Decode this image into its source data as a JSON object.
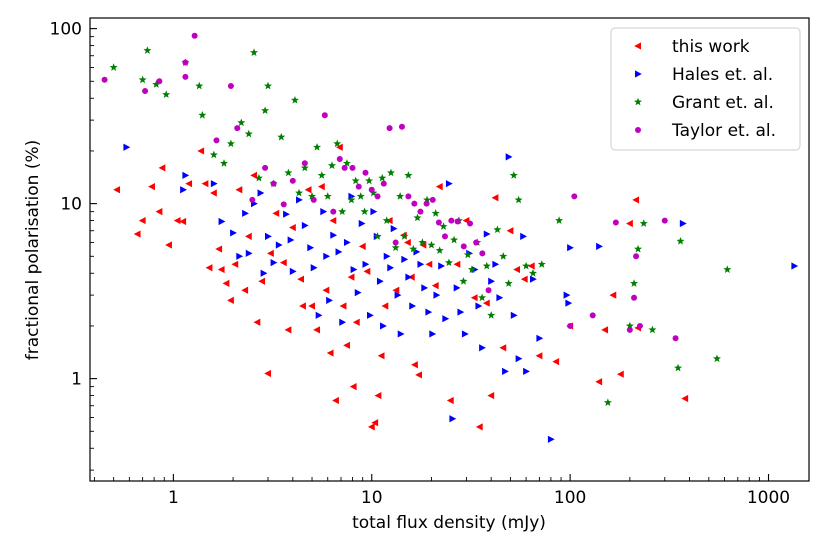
{
  "chart_data": {
    "type": "scatter",
    "xlabel": "total flux density (mJy)",
    "ylabel": "fractional polarisation (%)",
    "xscale": "log",
    "yscale": "log",
    "xlim": [
      0.38,
      1600
    ],
    "ylim": [
      0.26,
      115
    ],
    "xticks": [
      {
        "value": 1,
        "label": "1"
      },
      {
        "value": 10,
        "label": "10"
      },
      {
        "value": 100,
        "label": "100"
      },
      {
        "value": 1000,
        "label": "1000"
      }
    ],
    "yticks": [
      {
        "value": 1,
        "label": "1"
      },
      {
        "value": 10,
        "label": "10"
      },
      {
        "value": 100,
        "label": "100"
      }
    ],
    "grid": false,
    "legend_position": "top-right",
    "colors": {
      "this_work": "#ff0000",
      "hales": "#0000ff",
      "grant": "#008000",
      "taylor": "#bf00bf"
    },
    "series": [
      {
        "name": "this work",
        "marker": "triangle-left",
        "color": "#ff0000",
        "points": [
          [
            0.52,
            12.0
          ],
          [
            0.66,
            6.7
          ],
          [
            0.7,
            8.0
          ],
          [
            0.78,
            12.5
          ],
          [
            0.85,
            9.0
          ],
          [
            0.88,
            16.0
          ],
          [
            0.95,
            5.8
          ],
          [
            1.05,
            8.0
          ],
          [
            1.12,
            7.9
          ],
          [
            1.2,
            13.0
          ],
          [
            1.38,
            20.0
          ],
          [
            1.45,
            13.0
          ],
          [
            1.52,
            4.3
          ],
          [
            1.6,
            11.5
          ],
          [
            1.7,
            5.5
          ],
          [
            1.75,
            4.2
          ],
          [
            1.85,
            3.5
          ],
          [
            1.95,
            2.8
          ],
          [
            2.05,
            4.5
          ],
          [
            2.15,
            12.0
          ],
          [
            2.3,
            3.2
          ],
          [
            2.4,
            6.5
          ],
          [
            2.55,
            14.5
          ],
          [
            2.65,
            2.1
          ],
          [
            2.8,
            3.6
          ],
          [
            3.0,
            1.07
          ],
          [
            3.1,
            5.2
          ],
          [
            3.3,
            8.8
          ],
          [
            3.6,
            4.6
          ],
          [
            3.8,
            1.9
          ],
          [
            4.0,
            7.3
          ],
          [
            4.4,
            3.7
          ],
          [
            4.5,
            2.6
          ],
          [
            4.8,
            12.0
          ],
          [
            5.0,
            2.6
          ],
          [
            5.3,
            1.9
          ],
          [
            5.6,
            12.5
          ],
          [
            5.9,
            3.2
          ],
          [
            6.2,
            1.4
          ],
          [
            6.4,
            8.0
          ],
          [
            6.6,
            0.75
          ],
          [
            6.9,
            21.0
          ],
          [
            7.2,
            2.6
          ],
          [
            7.5,
            1.55
          ],
          [
            7.9,
            3.8
          ],
          [
            8.1,
            0.9
          ],
          [
            8.4,
            2.1
          ],
          [
            9.0,
            5.7
          ],
          [
            9.5,
            4.1
          ],
          [
            10.0,
            0.53
          ],
          [
            10.4,
            0.56
          ],
          [
            10.8,
            0.8
          ],
          [
            11.2,
            1.35
          ],
          [
            11.7,
            2.6
          ],
          [
            12.3,
            8.0
          ],
          [
            13.3,
            3.2
          ],
          [
            14.5,
            6.6
          ],
          [
            15.2,
            6.0
          ],
          [
            15.9,
            3.8
          ],
          [
            16.5,
            1.2
          ],
          [
            17.3,
            1.05
          ],
          [
            18.2,
            5.8
          ],
          [
            19.5,
            4.5
          ],
          [
            21.0,
            3.4
          ],
          [
            22.0,
            12.5
          ],
          [
            25.0,
            0.75
          ],
          [
            27.0,
            4.5
          ],
          [
            30.0,
            8.0
          ],
          [
            33.0,
            2.9
          ],
          [
            35.0,
            0.53
          ],
          [
            38.0,
            2.7
          ],
          [
            40.0,
            0.8
          ],
          [
            42.0,
            10.8
          ],
          [
            46.0,
            1.5
          ],
          [
            50.0,
            7.0
          ],
          [
            54.0,
            4.2
          ],
          [
            59.0,
            3.7
          ],
          [
            64.0,
            4.4
          ],
          [
            70.0,
            1.35
          ],
          [
            85.0,
            1.25
          ],
          [
            100.0,
            2.0
          ],
          [
            140.0,
            0.96
          ],
          [
            150.0,
            1.9
          ],
          [
            165.0,
            3.0
          ],
          [
            180.0,
            1.06
          ],
          [
            200.0,
            7.7
          ],
          [
            215.0,
            10.5
          ],
          [
            220.0,
            1.95
          ],
          [
            380.0,
            0.77
          ]
        ]
      },
      {
        "name": "Hales et. al.",
        "marker": "triangle-right",
        "color": "#0000ff",
        "points": [
          [
            0.58,
            21.0
          ],
          [
            1.12,
            12.0
          ],
          [
            1.15,
            14.5
          ],
          [
            1.6,
            13.0
          ],
          [
            1.75,
            7.9
          ],
          [
            2.0,
            6.8
          ],
          [
            2.15,
            5.0
          ],
          [
            2.3,
            8.8
          ],
          [
            2.4,
            5.2
          ],
          [
            2.55,
            10.0
          ],
          [
            2.75,
            11.5
          ],
          [
            2.85,
            4.0
          ],
          [
            3.0,
            6.5
          ],
          [
            3.2,
            4.6
          ],
          [
            3.4,
            5.8
          ],
          [
            3.7,
            8.7
          ],
          [
            3.9,
            6.2
          ],
          [
            4.0,
            4.1
          ],
          [
            4.3,
            10.5
          ],
          [
            4.6,
            7.5
          ],
          [
            4.9,
            5.6
          ],
          [
            5.1,
            4.3
          ],
          [
            5.4,
            2.3
          ],
          [
            5.7,
            9.0
          ],
          [
            5.9,
            5.0
          ],
          [
            6.1,
            2.8
          ],
          [
            6.4,
            6.6
          ],
          [
            6.8,
            5.3
          ],
          [
            7.1,
            2.1
          ],
          [
            7.5,
            6.0
          ],
          [
            7.9,
            11.0
          ],
          [
            8.1,
            4.2
          ],
          [
            8.5,
            3.1
          ],
          [
            8.9,
            7.7
          ],
          [
            9.3,
            4.5
          ],
          [
            9.8,
            2.3
          ],
          [
            10.2,
            9.0
          ],
          [
            10.6,
            6.5
          ],
          [
            11.0,
            3.6
          ],
          [
            11.4,
            2.0
          ],
          [
            11.9,
            5.0
          ],
          [
            12.4,
            4.3
          ],
          [
            12.9,
            7.2
          ],
          [
            13.5,
            3.0
          ],
          [
            14.0,
            1.8
          ],
          [
            14.6,
            4.8
          ],
          [
            15.3,
            3.8
          ],
          [
            16.0,
            2.6
          ],
          [
            16.8,
            5.3
          ],
          [
            17.6,
            4.5
          ],
          [
            18.4,
            3.3
          ],
          [
            19.3,
            2.4
          ],
          [
            20.2,
            1.8
          ],
          [
            21.2,
            3.0
          ],
          [
            22.4,
            4.4
          ],
          [
            23.5,
            2.2
          ],
          [
            24.5,
            13.0
          ],
          [
            25.5,
            0.59
          ],
          [
            26.8,
            3.3
          ],
          [
            28.0,
            2.4
          ],
          [
            29.5,
            1.8
          ],
          [
            31.0,
            5.2
          ],
          [
            33.0,
            4.2
          ],
          [
            34.5,
            2.6
          ],
          [
            36.0,
            1.5
          ],
          [
            38.0,
            6.7
          ],
          [
            40.0,
            3.6
          ],
          [
            42.0,
            4.5
          ],
          [
            44.0,
            2.9
          ],
          [
            47.0,
            1.1
          ],
          [
            49.0,
            18.5
          ],
          [
            52.0,
            2.3
          ],
          [
            55.0,
            1.3
          ],
          [
            58.0,
            6.5
          ],
          [
            60.0,
            1.1
          ],
          [
            65.0,
            3.7
          ],
          [
            70.0,
            1.7
          ],
          [
            80.0,
            0.45
          ],
          [
            96.0,
            3.0
          ],
          [
            98.0,
            2.7
          ],
          [
            100.0,
            5.6
          ],
          [
            140.0,
            5.7
          ],
          [
            370.0,
            7.7
          ],
          [
            1350.0,
            4.4
          ]
        ]
      },
      {
        "name": "Grant et. al.",
        "marker": "star",
        "color": "#008000",
        "points": [
          [
            0.5,
            60.0
          ],
          [
            0.7,
            51.0
          ],
          [
            0.74,
            75.0
          ],
          [
            0.82,
            48.0
          ],
          [
            0.92,
            42.0
          ],
          [
            1.15,
            64.0
          ],
          [
            1.35,
            47.0
          ],
          [
            1.4,
            32.0
          ],
          [
            1.6,
            19.0
          ],
          [
            1.8,
            17.0
          ],
          [
            1.95,
            22.0
          ],
          [
            2.2,
            29.0
          ],
          [
            2.4,
            25.0
          ],
          [
            2.55,
            73.0
          ],
          [
            2.7,
            14.0
          ],
          [
            2.9,
            34.0
          ],
          [
            3.0,
            47.0
          ],
          [
            3.2,
            13.0
          ],
          [
            3.5,
            24.0
          ],
          [
            3.8,
            15.0
          ],
          [
            4.1,
            39.0
          ],
          [
            4.3,
            11.5
          ],
          [
            4.6,
            16.0
          ],
          [
            5.0,
            11.0
          ],
          [
            5.3,
            21.0
          ],
          [
            5.6,
            14.5
          ],
          [
            6.0,
            11.0
          ],
          [
            6.3,
            16.5
          ],
          [
            6.7,
            22.0
          ],
          [
            7.1,
            9.0
          ],
          [
            7.5,
            17.0
          ],
          [
            7.9,
            10.5
          ],
          [
            8.3,
            13.5
          ],
          [
            8.8,
            11.0
          ],
          [
            9.2,
            9.0
          ],
          [
            9.7,
            13.5
          ],
          [
            10.2,
            11.5
          ],
          [
            10.7,
            6.5
          ],
          [
            11.3,
            14.0
          ],
          [
            11.9,
            8.0
          ],
          [
            12.5,
            15.0
          ],
          [
            13.2,
            5.6
          ],
          [
            13.9,
            11.0
          ],
          [
            14.6,
            6.5
          ],
          [
            15.3,
            14.5
          ],
          [
            16.2,
            5.5
          ],
          [
            17.0,
            8.3
          ],
          [
            18.0,
            6.0
          ],
          [
            19.0,
            10.5
          ],
          [
            20.0,
            5.8
          ],
          [
            21.0,
            8.8
          ],
          [
            22.0,
            5.4
          ],
          [
            23.0,
            7.4
          ],
          [
            24.5,
            4.6
          ],
          [
            26.0,
            6.2
          ],
          [
            27.5,
            8.0
          ],
          [
            29.0,
            3.6
          ],
          [
            30.5,
            5.1
          ],
          [
            32.0,
            4.2
          ],
          [
            34.0,
            6.0
          ],
          [
            36.0,
            2.9
          ],
          [
            38.0,
            4.4
          ],
          [
            40.0,
            2.3
          ],
          [
            43.0,
            7.1
          ],
          [
            46.0,
            5.0
          ],
          [
            49.0,
            3.5
          ],
          [
            52.0,
            14.5
          ],
          [
            55.0,
            10.5
          ],
          [
            60.0,
            4.4
          ],
          [
            65.0,
            4.0
          ],
          [
            72.0,
            4.5
          ],
          [
            88.0,
            8.0
          ],
          [
            155.0,
            0.73
          ],
          [
            200.0,
            2.0
          ],
          [
            210.0,
            3.5
          ],
          [
            220.0,
            5.5
          ],
          [
            235.0,
            7.7
          ],
          [
            260.0,
            1.9
          ],
          [
            350.0,
            1.15
          ],
          [
            360.0,
            6.1
          ],
          [
            550.0,
            1.3
          ],
          [
            620.0,
            4.2
          ]
        ]
      },
      {
        "name": "Taylor et. al.",
        "marker": "circle",
        "color": "#bf00bf",
        "points": [
          [
            0.45,
            51.0
          ],
          [
            0.72,
            44.0
          ],
          [
            0.85,
            50.0
          ],
          [
            1.15,
            53.0
          ],
          [
            1.15,
            64.0
          ],
          [
            1.28,
            91.0
          ],
          [
            1.65,
            23.0
          ],
          [
            1.95,
            47.0
          ],
          [
            2.1,
            27.0
          ],
          [
            2.5,
            10.5
          ],
          [
            2.9,
            16.0
          ],
          [
            3.2,
            13.0
          ],
          [
            3.6,
            9.9
          ],
          [
            4.0,
            13.5
          ],
          [
            4.6,
            17.0
          ],
          [
            5.1,
            10.5
          ],
          [
            5.8,
            32.0
          ],
          [
            6.4,
            9.0
          ],
          [
            6.9,
            18.0
          ],
          [
            7.3,
            16.0
          ],
          [
            8.0,
            16.0
          ],
          [
            8.6,
            12.5
          ],
          [
            9.3,
            15.0
          ],
          [
            10.0,
            12.0
          ],
          [
            10.7,
            11.0
          ],
          [
            11.5,
            13.0
          ],
          [
            12.3,
            27.0
          ],
          [
            13.2,
            6.0
          ],
          [
            14.2,
            27.5
          ],
          [
            15.3,
            11.0
          ],
          [
            16.4,
            10.0
          ],
          [
            17.6,
            9.0
          ],
          [
            18.9,
            10.0
          ],
          [
            20.3,
            10.5
          ],
          [
            21.8,
            7.8
          ],
          [
            23.4,
            6.5
          ],
          [
            25.2,
            8.0
          ],
          [
            27.1,
            7.9
          ],
          [
            29.1,
            5.7
          ],
          [
            31.3,
            7.7
          ],
          [
            33.6,
            6.0
          ],
          [
            36.1,
            5.2
          ],
          [
            38.8,
            3.2
          ],
          [
            100.0,
            2.0
          ],
          [
            105.0,
            11.0
          ],
          [
            130.0,
            2.3
          ],
          [
            170.0,
            7.8
          ],
          [
            200.0,
            1.9
          ],
          [
            210.0,
            2.9
          ],
          [
            215.0,
            5.0
          ],
          [
            225.0,
            2.0
          ],
          [
            300.0,
            8.0
          ],
          [
            340.0,
            1.7
          ]
        ]
      }
    ]
  }
}
